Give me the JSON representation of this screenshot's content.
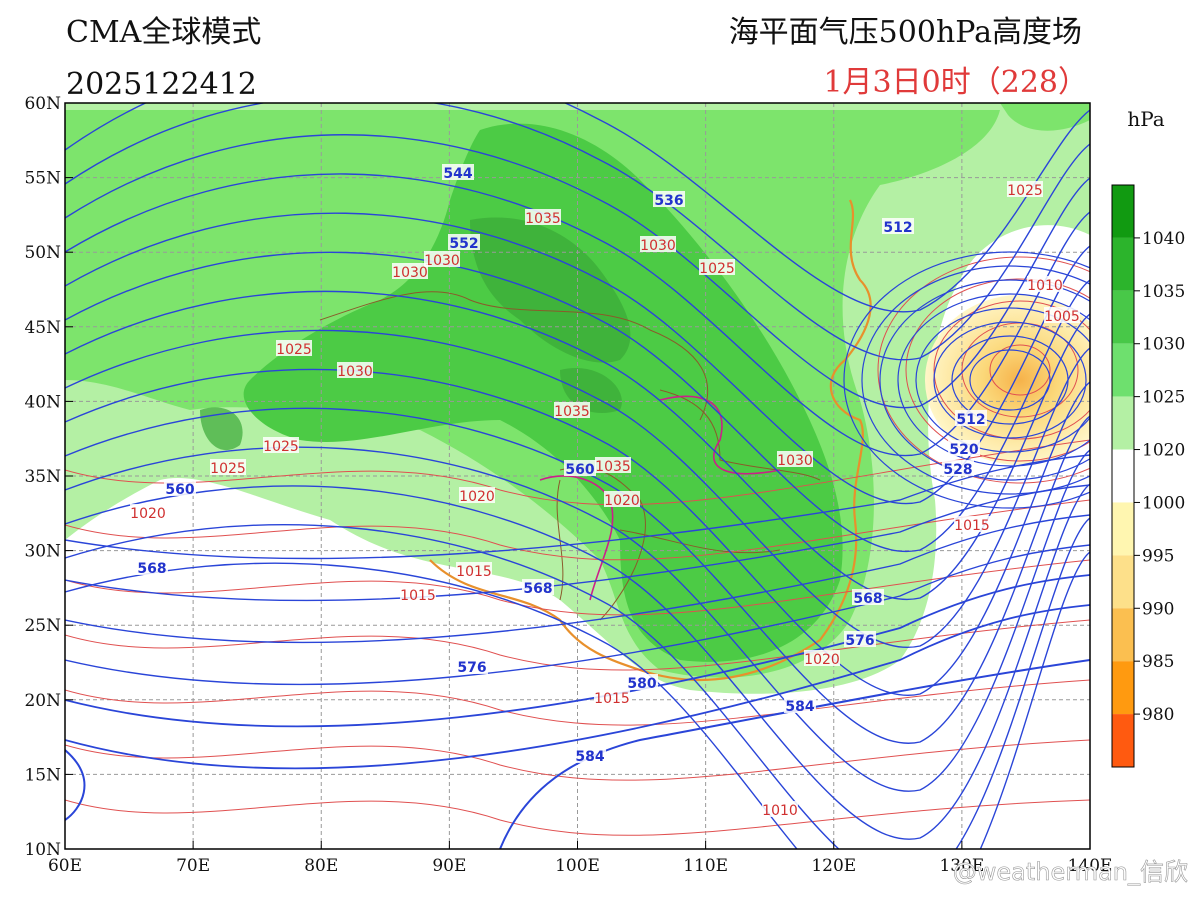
{
  "header": {
    "model": "CMA全球模式",
    "init_time": "2025122412",
    "title": "海平面气压500hPa高度场",
    "valid_time": "1月3日0时（228）"
  },
  "map": {
    "lat_labels": [
      "60N",
      "55N",
      "50N",
      "45N",
      "40N",
      "35N",
      "30N",
      "25N",
      "20N",
      "15N",
      "10N"
    ],
    "lon_labels": [
      "60E",
      "70E",
      "80E",
      "90E",
      "100E",
      "110E",
      "120E",
      "130E",
      "140E"
    ],
    "height_labels": [
      "544",
      "552",
      "536",
      "512",
      "560",
      "568",
      "560",
      "568",
      "576",
      "580",
      "584",
      "584",
      "568",
      "576",
      "512",
      "520",
      "528"
    ],
    "pressure_labels": [
      "1035",
      "1030",
      "1025",
      "1030",
      "1030",
      "1025",
      "1030",
      "1035",
      "1025",
      "1025",
      "1020",
      "1035",
      "1020",
      "1020",
      "1015",
      "1015",
      "1015",
      "1030",
      "1025",
      "1010",
      "1005",
      "1015",
      "1020",
      "1010"
    ]
  },
  "colorbar": {
    "unit": "hPa",
    "labels": [
      "1040",
      "1035",
      "1030",
      "1025",
      "1020",
      "1000",
      "995",
      "990",
      "985",
      "980"
    ]
  },
  "watermark": "@weatherman_信欣"
}
